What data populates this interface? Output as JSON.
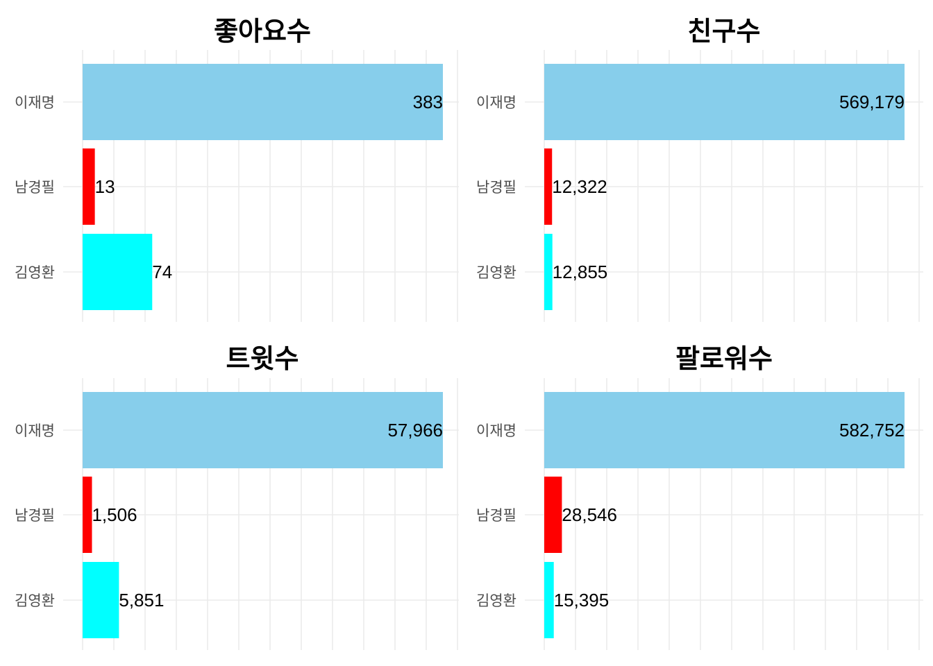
{
  "chart_data": [
    {
      "type": "bar",
      "orientation": "horizontal",
      "title": "좋아요수",
      "categories": [
        "이재명",
        "남경필",
        "김영환"
      ],
      "values": [
        383,
        13,
        74
      ],
      "value_labels": [
        "383",
        "13",
        "74"
      ],
      "colors": [
        "#87CEEB",
        "#FF0000",
        "#00FFFF"
      ],
      "xlim": [
        0,
        383
      ],
      "grid": true,
      "xlabel": "",
      "ylabel": ""
    },
    {
      "type": "bar",
      "orientation": "horizontal",
      "title": "친구수",
      "categories": [
        "이재명",
        "남경필",
        "김영환"
      ],
      "values": [
        569179,
        12322,
        12855
      ],
      "value_labels": [
        "569,179",
        "12,322",
        "12,855"
      ],
      "colors": [
        "#87CEEB",
        "#FF0000",
        "#00FFFF"
      ],
      "xlim": [
        0,
        569179
      ],
      "grid": true,
      "xlabel": "",
      "ylabel": ""
    },
    {
      "type": "bar",
      "orientation": "horizontal",
      "title": "트윗수",
      "categories": [
        "이재명",
        "남경필",
        "김영환"
      ],
      "values": [
        57966,
        1506,
        5851
      ],
      "value_labels": [
        "57,966",
        "1,506",
        "5,851"
      ],
      "colors": [
        "#87CEEB",
        "#FF0000",
        "#00FFFF"
      ],
      "xlim": [
        0,
        57966
      ],
      "grid": true,
      "xlabel": "",
      "ylabel": ""
    },
    {
      "type": "bar",
      "orientation": "horizontal",
      "title": "팔로워수",
      "categories": [
        "이재명",
        "남경필",
        "김영환"
      ],
      "values": [
        582752,
        28546,
        15395
      ],
      "value_labels": [
        "582,752",
        "28,546",
        "15,395"
      ],
      "colors": [
        "#87CEEB",
        "#FF0000",
        "#00FFFF"
      ],
      "xlim": [
        0,
        582752
      ],
      "grid": true,
      "xlabel": "",
      "ylabel": ""
    }
  ]
}
